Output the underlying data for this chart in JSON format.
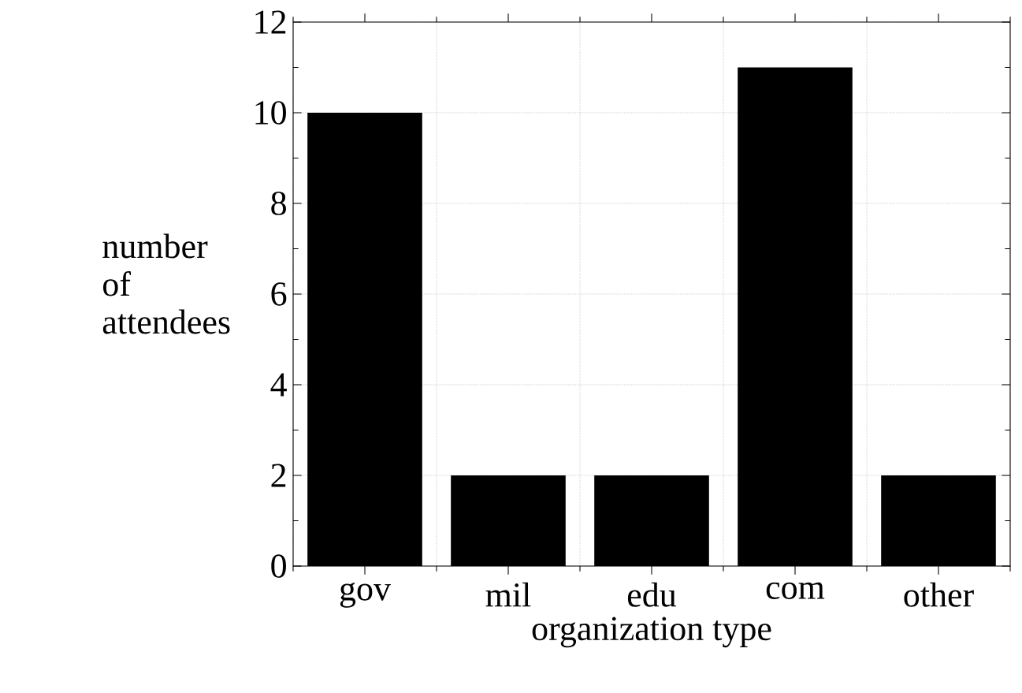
{
  "chart_data": {
    "type": "bar",
    "categories": [
      "gov",
      "mil",
      "edu",
      "com",
      "other"
    ],
    "values": [
      10,
      2,
      2,
      11,
      2
    ],
    "color": "#000000",
    "xlabel": "organization type",
    "ylabel": "number of attendees",
    "ylim": [
      0,
      12
    ],
    "yticks": [
      0,
      2,
      4,
      6,
      8,
      10,
      12
    ],
    "grid": true
  }
}
